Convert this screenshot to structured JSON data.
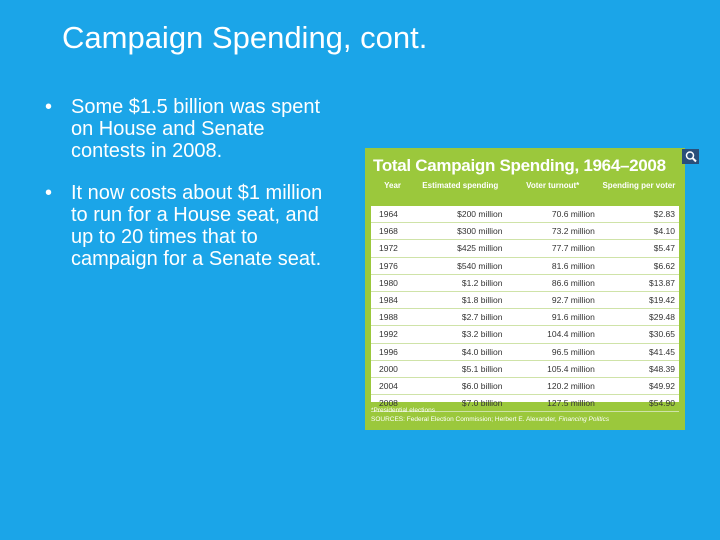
{
  "slide": {
    "title": "Campaign Spending, cont.",
    "bullets": [
      "Some $1.5 billion was spent on House and Senate contests in 2008.",
      "It now costs about $1 million to run for a House seat, and up to 20 times that to campaign for a Senate seat."
    ],
    "table": {
      "title": "Total Campaign Spending, 1964–2008",
      "headers": [
        "Year",
        "Estimated spending",
        "Voter turnout*",
        "Spending per voter"
      ],
      "rows": [
        [
          "1964",
          "$200 million",
          "70.6 million",
          "$2.83"
        ],
        [
          "1968",
          "$300 million",
          "73.2 million",
          "$4.10"
        ],
        [
          "1972",
          "$425 million",
          "77.7 million",
          "$5.47"
        ],
        [
          "1976",
          "$540 million",
          "81.6 million",
          "$6.62"
        ],
        [
          "1980",
          "$1.2 billion",
          "86.6 million",
          "$13.87"
        ],
        [
          "1984",
          "$1.8 billion",
          "92.7 million",
          "$19.42"
        ],
        [
          "1988",
          "$2.7 billion",
          "91.6 million",
          "$29.48"
        ],
        [
          "1992",
          "$3.2 billion",
          "104.4 million",
          "$30.65"
        ],
        [
          "1996",
          "$4.0 billion",
          "96.5 million",
          "$41.45"
        ],
        [
          "2000",
          "$5.1 billion",
          "105.4 million",
          "$48.39"
        ],
        [
          "2004",
          "$6.0 billion",
          "120.2 million",
          "$49.92"
        ],
        [
          "2008",
          "$7.0 billion",
          "127.5 million",
          "$54.90"
        ]
      ],
      "footnote": "*Presidential elections",
      "sources": [
        "SOURCES: Federal Election Commission; Herbert E. Alexander, ",
        "Financing Politics"
      ]
    }
  }
}
